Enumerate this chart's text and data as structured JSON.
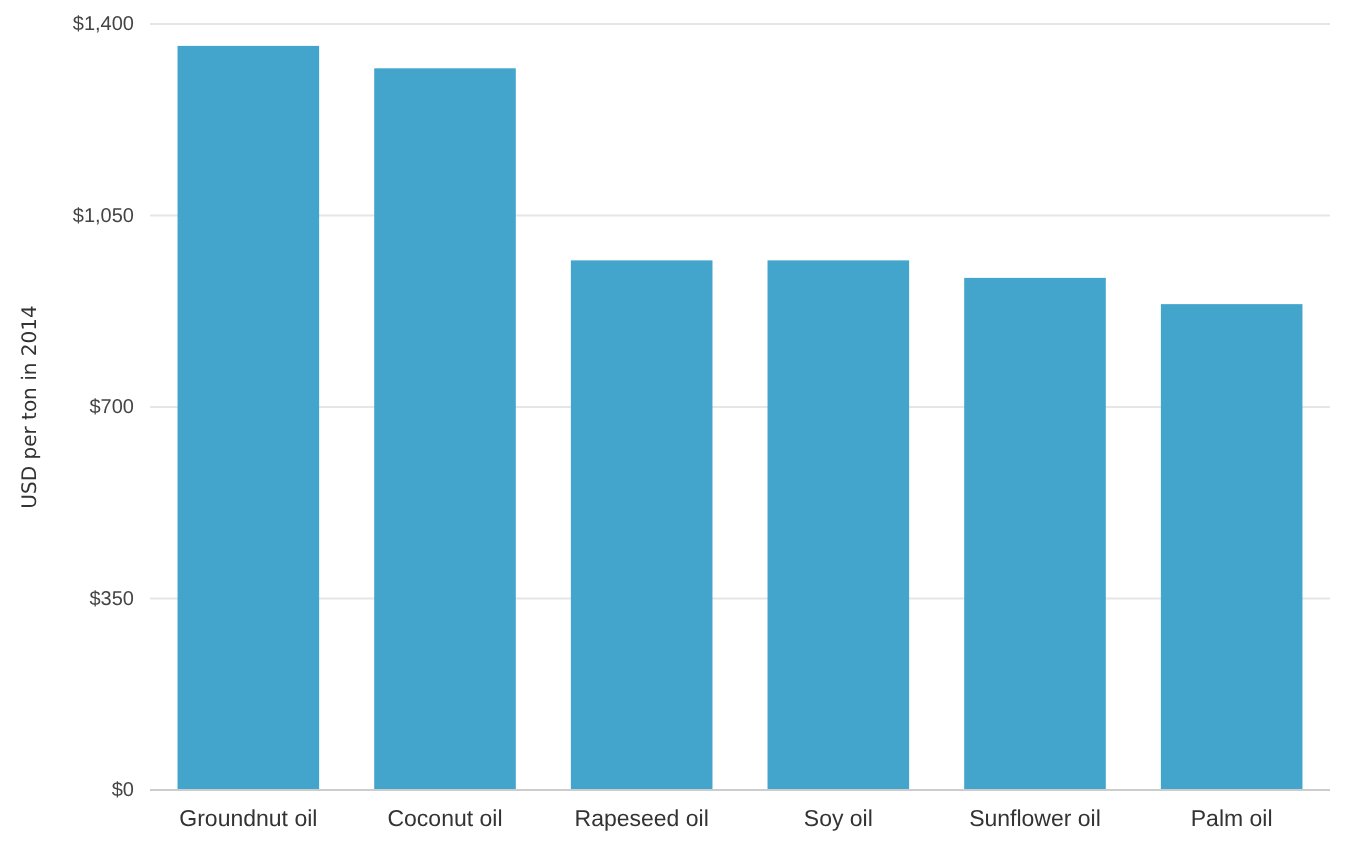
{
  "chart_data": {
    "type": "bar",
    "ylabel": "USD per ton in 2014",
    "categories": [
      "Groundnut oil",
      "Coconut oil",
      "Rapeseed oil",
      "Soy oil",
      "Sunflower oil",
      "Palm oil"
    ],
    "values": [
      1360,
      1319,
      968,
      968,
      936,
      888
    ],
    "color": "#44a5cc",
    "ylim": [
      0,
      1400
    ],
    "yticks": [
      {
        "value": 0,
        "label": "$0"
      },
      {
        "value": 350,
        "label": "$350"
      },
      {
        "value": 700,
        "label": "$700"
      },
      {
        "value": 1050,
        "label": "$1,050"
      },
      {
        "value": 1400,
        "label": "$1,400"
      }
    ],
    "grid": "y"
  }
}
